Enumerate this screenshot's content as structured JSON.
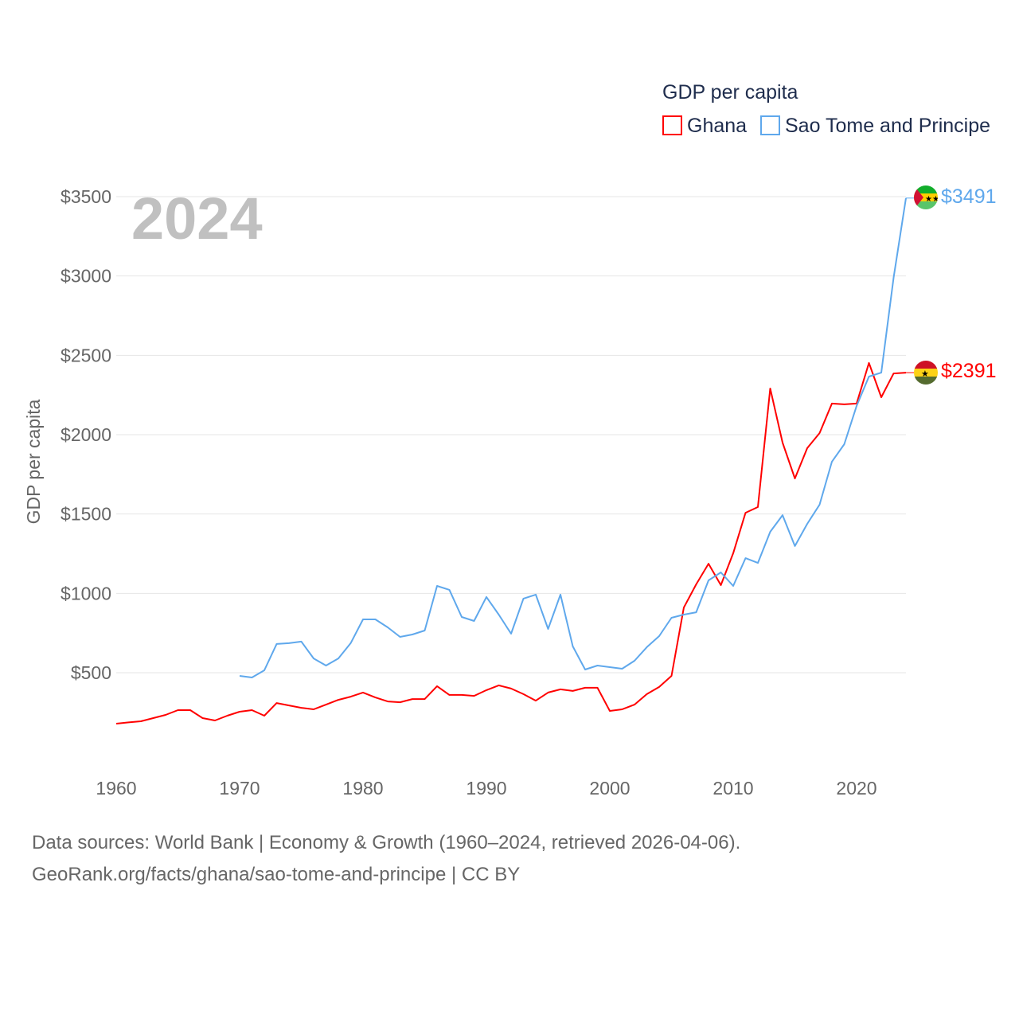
{
  "chart_data": {
    "type": "line",
    "title": "GDP per capita",
    "ylabel": "GDP per capita",
    "xlabel": "",
    "year_label": "2024",
    "xlim": [
      1960,
      2024
    ],
    "ylim": [
      0,
      3600
    ],
    "x_ticks": [
      1960,
      1970,
      1980,
      1990,
      2000,
      2010,
      2020
    ],
    "y_ticks": [
      500,
      1000,
      1500,
      2000,
      2500,
      3000,
      3500
    ],
    "y_tick_labels": [
      "$500",
      "$1000",
      "$1500",
      "$2000",
      "$2500",
      "$3000",
      "$3500"
    ],
    "grid": true,
    "legend_position": "top-right",
    "series": [
      {
        "name": "Ghana",
        "color": "#ff0000",
        "end_label": "$2391",
        "start_year": 1960,
        "values": [
          179,
          187,
          194,
          214,
          234,
          264,
          264,
          214,
          199,
          229,
          254,
          264,
          229,
          309,
          294,
          279,
          269,
          299,
          329,
          349,
          375,
          344,
          319,
          314,
          334,
          334,
          415,
          360,
          360,
          354,
          390,
          420,
          400,
          365,
          324,
          375,
          395,
          385,
          405,
          405,
          259,
          269,
          299,
          365,
          410,
          480,
          911,
          1057,
          1187,
          1052,
          1253,
          1508,
          1544,
          2291,
          1950,
          1724,
          1915,
          2010,
          2196,
          2191,
          2196,
          2452,
          2236,
          2386,
          2391
        ]
      },
      {
        "name": "Sao Tome and Principe",
        "color": "#5fa8ec",
        "end_label": "$3491",
        "start_year": 1970,
        "values": [
          480,
          470,
          515,
          681,
          686,
          696,
          590,
          545,
          590,
          686,
          836,
          836,
          786,
          726,
          741,
          766,
          1047,
          1022,
          851,
          826,
          977,
          866,
          746,
          967,
          992,
          776,
          992,
          666,
          520,
          545,
          535,
          525,
          575,
          661,
          731,
          846,
          866,
          881,
          1082,
          1132,
          1047,
          1222,
          1192,
          1388,
          1493,
          1298,
          1438,
          1559,
          1830,
          1940,
          2181,
          2366,
          2391,
          2990,
          3491
        ]
      }
    ]
  },
  "footer": {
    "line1": "Data sources: World Bank | Economy & Growth (1960–2024, retrieved 2026-04-06).",
    "line2": "GeoRank.org/facts/ghana/sao-tome-and-principe | CC BY"
  }
}
